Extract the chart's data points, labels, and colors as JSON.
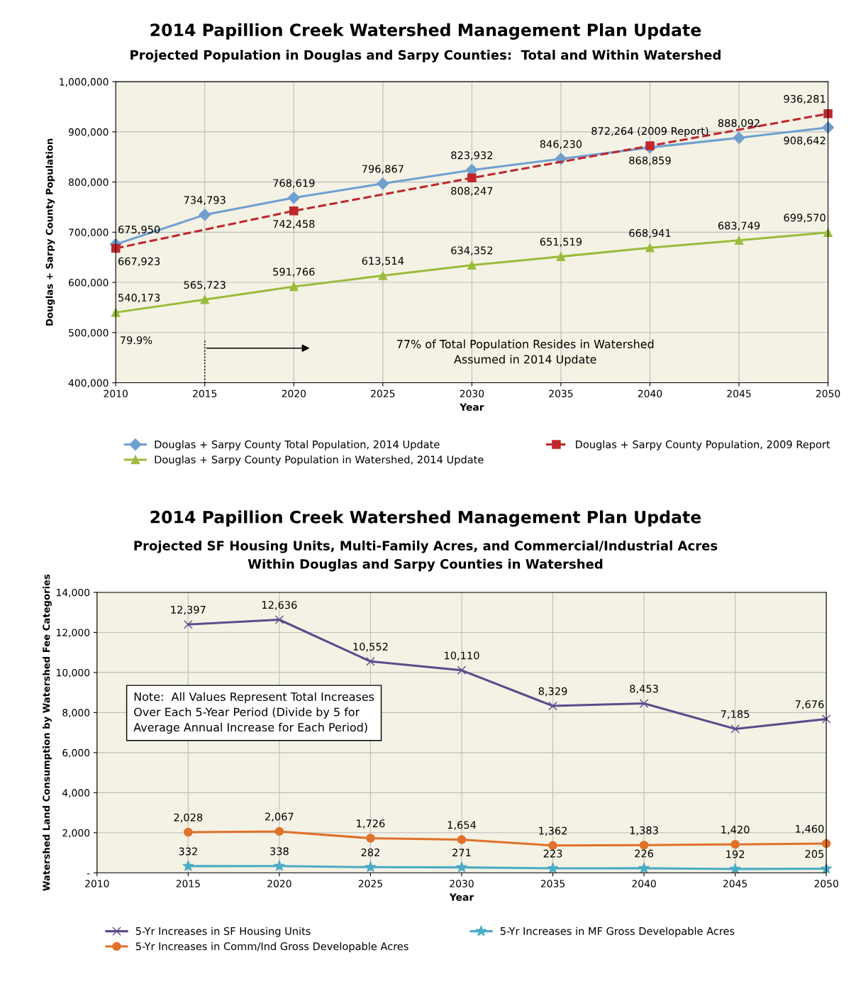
{
  "chart_data": [
    {
      "type": "line",
      "title": "2014 Papillion Creek Watershed Management Plan Update",
      "subtitle": "Projected Population in Douglas and Sarpy Counties:  Total and Within Watershed",
      "xlabel": "Year",
      "ylabel": "Douglas + Sarpy County Population",
      "x": [
        2010,
        2015,
        2020,
        2025,
        2030,
        2035,
        2040,
        2045,
        2050
      ],
      "series": [
        {
          "name": "Douglas + Sarpy County Total Population, 2014 Update",
          "color": "#6fa0d0",
          "marker": "diamond",
          "line_style": "solid",
          "values": [
            675950,
            734793,
            768619,
            796867,
            823932,
            846230,
            868859,
            888092,
            908642
          ],
          "value_labels": [
            "675,950",
            "734,793",
            "768,619",
            "796,867",
            "823,932",
            "846,230",
            "868,859",
            "888,092",
            "908,642"
          ]
        },
        {
          "name": "Douglas + Sarpy County Population, 2009 Report",
          "color": "#c0272d",
          "marker": "square",
          "line_style": "dashed",
          "x": [
            2010,
            2020,
            2030,
            2040,
            2050
          ],
          "values": [
            667923,
            742458,
            808247,
            872264,
            936281
          ],
          "value_labels": [
            "667,923",
            "742,458",
            "808,247",
            "872,264 (2009 Report)",
            "936,281"
          ]
        },
        {
          "name": "Douglas + Sarpy County Population in Watershed, 2014 Update",
          "color": "#9bbb3c",
          "marker": "triangle",
          "line_style": "solid",
          "values": [
            540173,
            565723,
            591766,
            613514,
            634352,
            651519,
            668941,
            683749,
            699570
          ],
          "value_labels": [
            "540,173",
            "565,723",
            "591,766",
            "613,514",
            "634,352",
            "651,519",
            "668,941",
            "683,749",
            "699,570"
          ]
        }
      ],
      "annotations": [
        {
          "text": "79.9%",
          "x": 2010,
          "y": 540173
        },
        "77% of Total Population Resides in Watershed\nAssumed in 2014 Update"
      ],
      "xlim": [
        2010,
        2050
      ],
      "xticks": [
        2010,
        2015,
        2020,
        2025,
        2030,
        2035,
        2040,
        2045,
        2050
      ],
      "ylim": [
        400000,
        1000000
      ],
      "yticks": [
        {
          "value": 400000,
          "label": "400,000"
        },
        {
          "value": 500000,
          "label": "500,000"
        },
        {
          "value": 600000,
          "label": "600,000"
        },
        {
          "value": 700000,
          "label": "700,000"
        },
        {
          "value": 800000,
          "label": "800,000"
        },
        {
          "value": 900000,
          "label": "900,000"
        },
        {
          "value": 1000000,
          "label": "1,000,000"
        }
      ],
      "grid": true,
      "legend": "bottom"
    },
    {
      "type": "line",
      "title": "2014 Papillion Creek Watershed Management Plan Update",
      "subtitle": "Projected SF Housing Units, Multi-Family Acres, and Commercial/Industrial Acres\nWithin Douglas and Sarpy Counties in Watershed",
      "xlabel": "Year",
      "ylabel": "Watershed Land Consumption by Watershed Fee Categories",
      "x": [
        2015,
        2020,
        2025,
        2030,
        2035,
        2040,
        2045,
        2050
      ],
      "series": [
        {
          "name": "5-Yr Increases in SF Housing Units",
          "color": "#5e4a8b",
          "marker": "cross",
          "line_style": "solid",
          "values": [
            12397,
            12636,
            10552,
            10110,
            8329,
            8453,
            7185,
            7676
          ],
          "value_labels": [
            "12,397",
            "12,636",
            "10,552",
            "10,110",
            "8,329",
            "8,453",
            "7,185",
            "7,676"
          ]
        },
        {
          "name": "5-Yr Increases in MF Gross Developable Acres",
          "color": "#4bacc6",
          "marker": "star",
          "line_style": "solid",
          "values": [
            332,
            338,
            282,
            271,
            223,
            226,
            192,
            205
          ],
          "value_labels": [
            "332",
            "338",
            "282",
            "271",
            "223",
            "226",
            "192",
            "205"
          ]
        },
        {
          "name": "5-Yr Increases in Comm/Ind Gross Developable Acres",
          "color": "#e0712a",
          "marker": "circle",
          "line_style": "solid",
          "values": [
            2028,
            2067,
            1726,
            1654,
            1362,
            1383,
            1420,
            1460
          ],
          "value_labels": [
            "2,028",
            "2,067",
            "1,726",
            "1,654",
            "1,362",
            "1,383",
            "1,420",
            "1,460"
          ]
        }
      ],
      "annotations": [
        "Note:  All Values Represent Total Increases\nOver Each 5-Year Period (Divide by 5 for\nAverage Annual Increase for Each Period)"
      ],
      "xlim": [
        2010,
        2050
      ],
      "xticks": [
        2010,
        2015,
        2020,
        2025,
        2030,
        2035,
        2040,
        2045,
        2050
      ],
      "ylim": [
        0,
        14000
      ],
      "yticks": [
        {
          "value": 0,
          "label": "-"
        },
        {
          "value": 2000,
          "label": "2,000"
        },
        {
          "value": 4000,
          "label": "4,000"
        },
        {
          "value": 6000,
          "label": "6,000"
        },
        {
          "value": 8000,
          "label": "8,000"
        },
        {
          "value": 10000,
          "label": "10,000"
        },
        {
          "value": 12000,
          "label": "12,000"
        },
        {
          "value": 14000,
          "label": "14,000"
        }
      ],
      "grid": true,
      "legend": "bottom"
    }
  ]
}
